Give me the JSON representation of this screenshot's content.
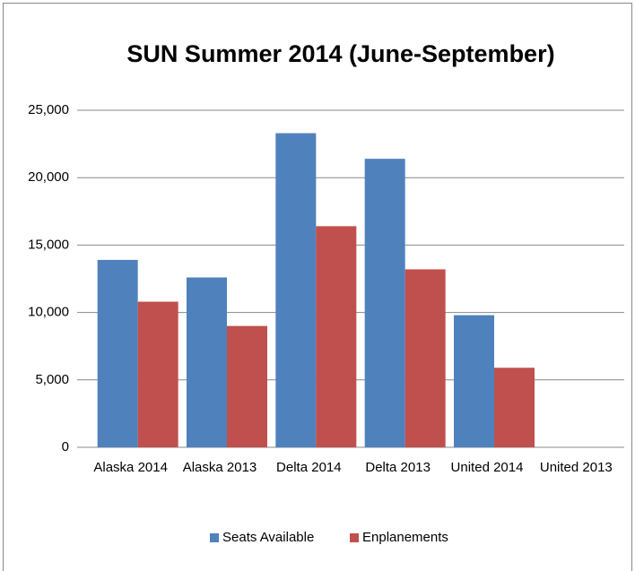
{
  "chart_data": {
    "type": "bar",
    "title": "SUN Summer 2014 (June-September)",
    "categories": [
      "Alaska 2014",
      "Alaska 2013",
      "Delta 2014",
      "Delta 2013",
      "United 2014",
      "United 2013"
    ],
    "series": [
      {
        "name": "Seats Available",
        "color": "#4f81bd",
        "values": [
          13900,
          12600,
          23300,
          21400,
          9800,
          null
        ]
      },
      {
        "name": "Enplanements",
        "color": "#c0504d",
        "values": [
          10800,
          9000,
          16400,
          13200,
          5900,
          null
        ]
      }
    ],
    "ylim": [
      0,
      25000
    ],
    "yticks": [
      0,
      {
        "value": 5000,
        "label": "5,000"
      },
      {
        "value": 10000,
        "label": "10,000"
      },
      {
        "value": 15000,
        "label": "15,000"
      },
      {
        "value": 20000,
        "label": "20,000"
      },
      {
        "value": 25000,
        "label": "25,000"
      }
    ],
    "grid": true,
    "legend": "bottom"
  }
}
